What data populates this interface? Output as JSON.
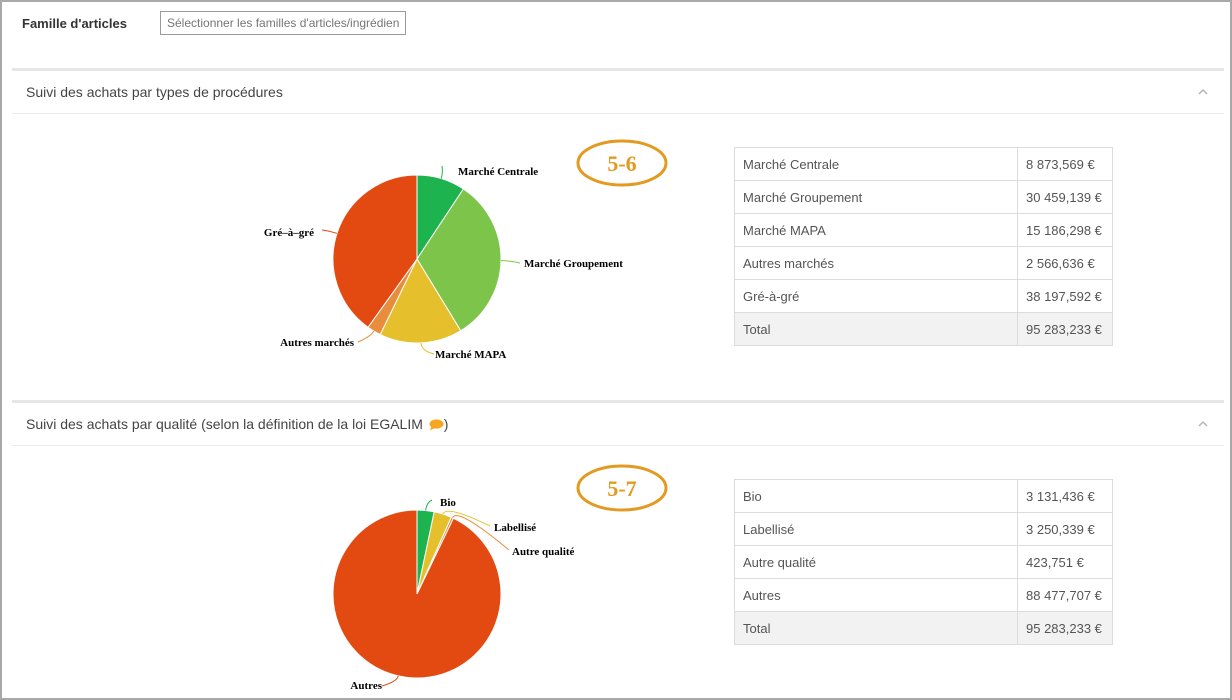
{
  "filter": {
    "label": "Famille d'articles",
    "placeholder": "Sélectionner les familles d'articles/ingrédients"
  },
  "panel_procedures": {
    "title": "Suivi des achats par types de procédures",
    "badge": "5-6",
    "rows": [
      {
        "label": "Marché Centrale",
        "value": "8 873,569 €"
      },
      {
        "label": "Marché Groupement",
        "value": "30 459,139 €"
      },
      {
        "label": "Marché MAPA",
        "value": "15 186,298 €"
      },
      {
        "label": "Autres marchés",
        "value": "2 566,636 €"
      },
      {
        "label": "Gré-à-gré",
        "value": "38 197,592 €"
      }
    ],
    "total": {
      "label": "Total",
      "value": "95 283,233 €"
    }
  },
  "panel_quality": {
    "title": "Suivi des achats par qualité (selon la définition de la loi EGALIM",
    "title_end": ")",
    "badge": "5-7",
    "rows": [
      {
        "label": "Bio",
        "value": "3 131,436 €"
      },
      {
        "label": "Labellisé",
        "value": "3 250,339 €"
      },
      {
        "label": "Autre qualité",
        "value": "423,751 €"
      },
      {
        "label": "Autres",
        "value": "88 477,707 €"
      }
    ],
    "total": {
      "label": "Total",
      "value": "95 283,233 €"
    }
  },
  "chart_data": [
    {
      "type": "pie",
      "start_angle": "top",
      "direction": "clockwise",
      "categories": [
        "Marché Centrale",
        "Marché Groupement",
        "Marché MAPA",
        "Autres marchés",
        "Gré-à-gré"
      ],
      "labels": [
        "Marché Centrale",
        "Marché Groupement",
        "Marché MAPA",
        "Autres marchés",
        "Gré–à–gré"
      ],
      "values": [
        8873.569,
        30459.139,
        15186.298,
        2566.636,
        38197.592
      ],
      "colors": [
        "#1db34f",
        "#7cc54a",
        "#e5c02c",
        "#e88d3e",
        "#e24a12"
      ]
    },
    {
      "type": "pie",
      "start_angle": "top",
      "direction": "clockwise",
      "categories": [
        "Bio",
        "Labellisé",
        "Autre qualité",
        "Autres"
      ],
      "labels": [
        "Bio",
        "Labellisé",
        "Autre qualité",
        "Autres"
      ],
      "values": [
        3131.436,
        3250.339,
        423.751,
        88477.707
      ],
      "colors": [
        "#1db34f",
        "#e5c02c",
        "#e88d3e",
        "#e24a12"
      ]
    }
  ],
  "icons": {
    "collapse": "chevron-up-icon",
    "info": "speech-bubble-icon"
  },
  "colors": {
    "badge": "#e29a20",
    "speech": "#f5a623"
  }
}
